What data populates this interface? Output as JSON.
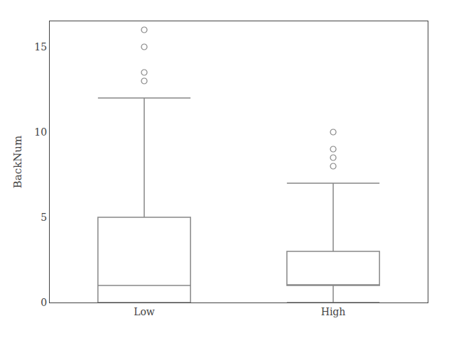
{
  "chart_data": {
    "type": "box",
    "categories": [
      "Low",
      "High"
    ],
    "q1": [
      0,
      1
    ],
    "median": [
      1,
      1
    ],
    "q3": [
      5,
      3
    ],
    "whisker_low": [
      0,
      0
    ],
    "whisker_high": [
      12,
      7
    ],
    "outliers": [
      [
        13,
        13.5,
        15,
        16
      ],
      [
        8,
        8.5,
        9,
        10
      ]
    ],
    "ylabel": "BackNum",
    "ylim": [
      0,
      16.5
    ],
    "yticks": [
      0,
      5,
      10,
      15
    ],
    "color": "#888888",
    "grid": false
  }
}
